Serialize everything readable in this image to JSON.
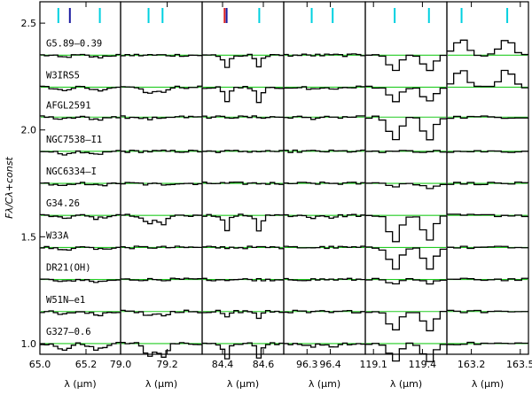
{
  "chart_data": {
    "type": "line",
    "ylabel": "Fλ/Cλ+const",
    "ylim": [
      0.95,
      2.6
    ],
    "yticks": [
      1.0,
      1.5,
      2.0,
      2.5
    ],
    "ytick_labels": [
      "1.0",
      "1.5",
      "2.0",
      "2.5"
    ],
    "colors": {
      "spectrum": "#000000",
      "continuum": "#22cc22",
      "marker_cyan": "#00d0e0",
      "marker_blue": "#1a1aa0",
      "marker_red": "#dd2222",
      "frame": "#000000"
    },
    "sources": [
      {
        "name": "G5.89–0.39",
        "offset": 2.35
      },
      {
        "name": "W3IRS5",
        "offset": 2.2
      },
      {
        "name": "AFGL2591",
        "offset": 2.06
      },
      {
        "name": "NGC7538–I1",
        "offset": 1.9
      },
      {
        "name": "NGC6334–I",
        "offset": 1.75
      },
      {
        "name": "G34.26",
        "offset": 1.6
      },
      {
        "name": "W33A",
        "offset": 1.45
      },
      {
        "name": "DR21(OH)",
        "offset": 1.3
      },
      {
        "name": "W51N–e1",
        "offset": 1.15
      },
      {
        "name": "G327–0.6",
        "offset": 1.0
      }
    ],
    "panels": [
      {
        "xrange": [
          65.0,
          65.35
        ],
        "ticks": [
          65.0,
          65.2
        ],
        "tick_labels": [
          "65.0",
          "65.2"
        ],
        "xlabel": "λ (μm)",
        "markers": [
          {
            "x": 65.08,
            "color": "cyan"
          },
          {
            "x": 65.13,
            "color": "blue"
          },
          {
            "x": 65.26,
            "color": "cyan"
          }
        ],
        "lines": [
          {
            "center": 65.1,
            "width": 0.05
          },
          {
            "center": 65.25,
            "width": 0.05
          }
        ],
        "depths": [
          0.01,
          0.015,
          0.01,
          0.012,
          0.01,
          0.014,
          0.01,
          0.012,
          0.015,
          0.03
        ]
      },
      {
        "xrange": [
          79.0,
          79.35
        ],
        "ticks": [
          79.0,
          79.2
        ],
        "tick_labels": [
          "79.0",
          "79.2"
        ],
        "xlabel": "λ (μm)",
        "markers": [
          {
            "x": 79.12,
            "color": "cyan"
          },
          {
            "x": 79.18,
            "color": "cyan"
          }
        ],
        "lines": [
          {
            "center": 79.12,
            "width": 0.035
          },
          {
            "center": 79.18,
            "width": 0.035
          }
        ],
        "depths": [
          0.0,
          0.03,
          0.01,
          0.0,
          0.005,
          0.04,
          0.0,
          0.0,
          0.02,
          0.06
        ]
      },
      {
        "xrange": [
          84.3,
          84.7
        ],
        "ticks": [
          84.4,
          84.6
        ],
        "tick_labels": [
          "84.4",
          "84.6"
        ],
        "xlabel": "λ (μm)",
        "markers": [
          {
            "x": 84.41,
            "color": "red"
          },
          {
            "x": 84.42,
            "color": "blue"
          },
          {
            "x": 84.58,
            "color": "cyan"
          }
        ],
        "lines": [
          {
            "center": 84.42,
            "width": 0.025
          },
          {
            "center": 84.58,
            "width": 0.025
          }
        ],
        "depths": [
          0.055,
          0.07,
          0.0,
          0.0,
          0.0,
          0.07,
          0.0,
          0.0,
          0.03,
          0.07
        ]
      },
      {
        "xrange": [
          96.2,
          96.55
        ],
        "ticks": [
          96.3,
          96.4
        ],
        "tick_labels": [
          "96.3",
          "96.4"
        ],
        "xlabel": "λ (μm)",
        "markers": [
          {
            "x": 96.32,
            "color": "cyan"
          },
          {
            "x": 96.41,
            "color": "cyan"
          }
        ],
        "lines": [
          {
            "center": 96.32,
            "width": 0.035
          },
          {
            "center": 96.41,
            "width": 0.035
          }
        ],
        "depths": [
          0.0,
          0.01,
          0.005,
          0.0,
          0.0,
          0.01,
          0.0,
          0.0,
          0.005,
          0.015
        ]
      },
      {
        "xrange": [
          119.05,
          119.55
        ],
        "ticks": [
          119.1,
          119.4
        ],
        "tick_labels": [
          "119.1",
          "119.4"
        ],
        "xlabel": "λ (μm)",
        "markers": [
          {
            "x": 119.23,
            "color": "cyan"
          },
          {
            "x": 119.44,
            "color": "cyan"
          }
        ],
        "lines": [
          {
            "center": 119.23,
            "width": 0.06
          },
          {
            "center": 119.44,
            "width": 0.06
          }
        ],
        "depths": [
          0.07,
          0.07,
          0.11,
          0.0,
          0.02,
          0.12,
          0.1,
          0.02,
          0.09,
          0.08
        ]
      },
      {
        "xrange": [
          163.05,
          163.55
        ],
        "ticks": [
          163.2,
          163.5
        ],
        "tick_labels": [
          "163.2",
          "163.5"
        ],
        "xlabel": "λ (μm)",
        "markers": [
          {
            "x": 163.14,
            "color": "cyan"
          },
          {
            "x": 163.42,
            "color": "cyan"
          }
        ],
        "lines": [
          {
            "center": 163.14,
            "width": 0.07
          },
          {
            "center": 163.42,
            "width": 0.07
          }
        ],
        "depths": [
          -0.07,
          -0.08,
          0.0,
          0.0,
          0.0,
          0.0,
          0.0,
          0.0,
          0.0,
          0.0
        ]
      }
    ]
  }
}
